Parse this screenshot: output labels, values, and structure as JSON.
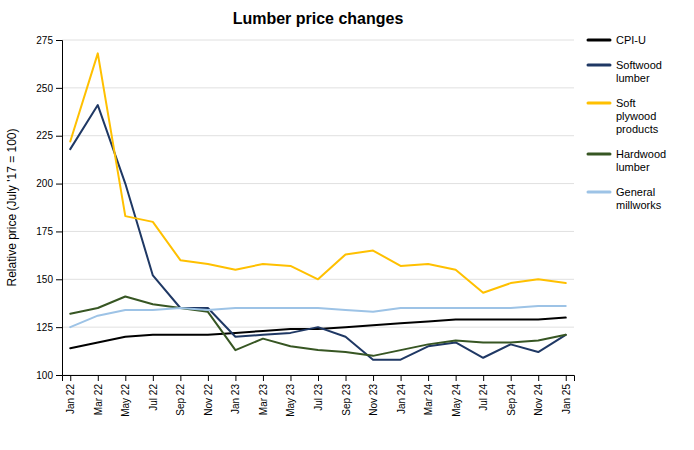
{
  "chart_data": {
    "type": "line",
    "title": "Lumber price changes",
    "y_label": "Relative price (July '17 = 100)",
    "categories": [
      "Jan 22",
      "Mar 22",
      "May 22",
      "Jul 22",
      "Sep 22",
      "Nov 22",
      "Jan 23",
      "Mar 23",
      "May 23",
      "Jul 23",
      "Sep 23",
      "Nov 23",
      "Jan 24",
      "Mar 24",
      "May 24",
      "Jul 24",
      "Sep 24",
      "Nov 24",
      "Jan 25"
    ],
    "series": [
      {
        "name": "CPI-U",
        "color": "#000000",
        "values": [
          114,
          117,
          120,
          121,
          121,
          121,
          122,
          123,
          124,
          124,
          125,
          126,
          127,
          128,
          129,
          129,
          129,
          129,
          130
        ]
      },
      {
        "name": "Softwood\nlumber",
        "color": "#1f3864",
        "values": [
          218,
          241,
          200,
          152,
          135,
          135,
          120,
          121,
          122,
          125,
          120,
          108,
          108,
          115,
          117,
          109,
          116,
          112,
          121
        ]
      },
      {
        "name": "Soft\nplywood\nproducts",
        "color": "#ffc000",
        "values": [
          222,
          268,
          183,
          180,
          160,
          158,
          155,
          158,
          157,
          150,
          163,
          165,
          157,
          158,
          155,
          143,
          148,
          150,
          148
        ]
      },
      {
        "name": "Hardwood\nlumber",
        "color": "#375623",
        "values": [
          132,
          135,
          141,
          137,
          135,
          133,
          113,
          119,
          115,
          113,
          112,
          110,
          113,
          116,
          118,
          117,
          117,
          118,
          121
        ]
      },
      {
        "name": "General\nmillworks",
        "color": "#9dc3e6",
        "values": [
          125,
          131,
          134,
          134,
          135,
          134,
          135,
          135,
          135,
          135,
          134,
          133,
          135,
          135,
          135,
          135,
          135,
          136,
          136
        ]
      }
    ],
    "ylim": [
      100,
      275
    ],
    "yticks": [
      100,
      125,
      150,
      175,
      200,
      225,
      250,
      275
    ],
    "grid": true,
    "legend": "right"
  }
}
